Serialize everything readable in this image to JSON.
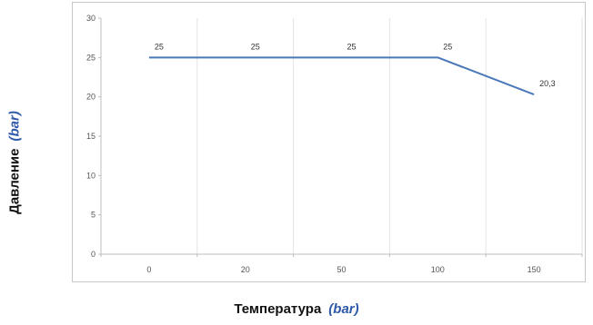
{
  "chart_data": {
    "type": "line",
    "categories": [
      "0",
      "20",
      "50",
      "100",
      "150"
    ],
    "series": [
      {
        "values": [
          25,
          25,
          25,
          25,
          20.3
        ],
        "data_labels": [
          "25",
          "25",
          "25",
          "25",
          "20,3"
        ],
        "color": "#4a78b8"
      }
    ],
    "yticks": [
      "0",
      "5",
      "10",
      "15",
      "20",
      "25",
      "30"
    ],
    "ylim": [
      0,
      30
    ],
    "xlabel": {
      "name": "Температура",
      "unit": "(bar)"
    },
    "ylabel": {
      "name": "Давление",
      "unit": "(bar)"
    },
    "grid": {
      "horizontal": false,
      "vertical": true,
      "color": "#e3e3e3"
    }
  }
}
